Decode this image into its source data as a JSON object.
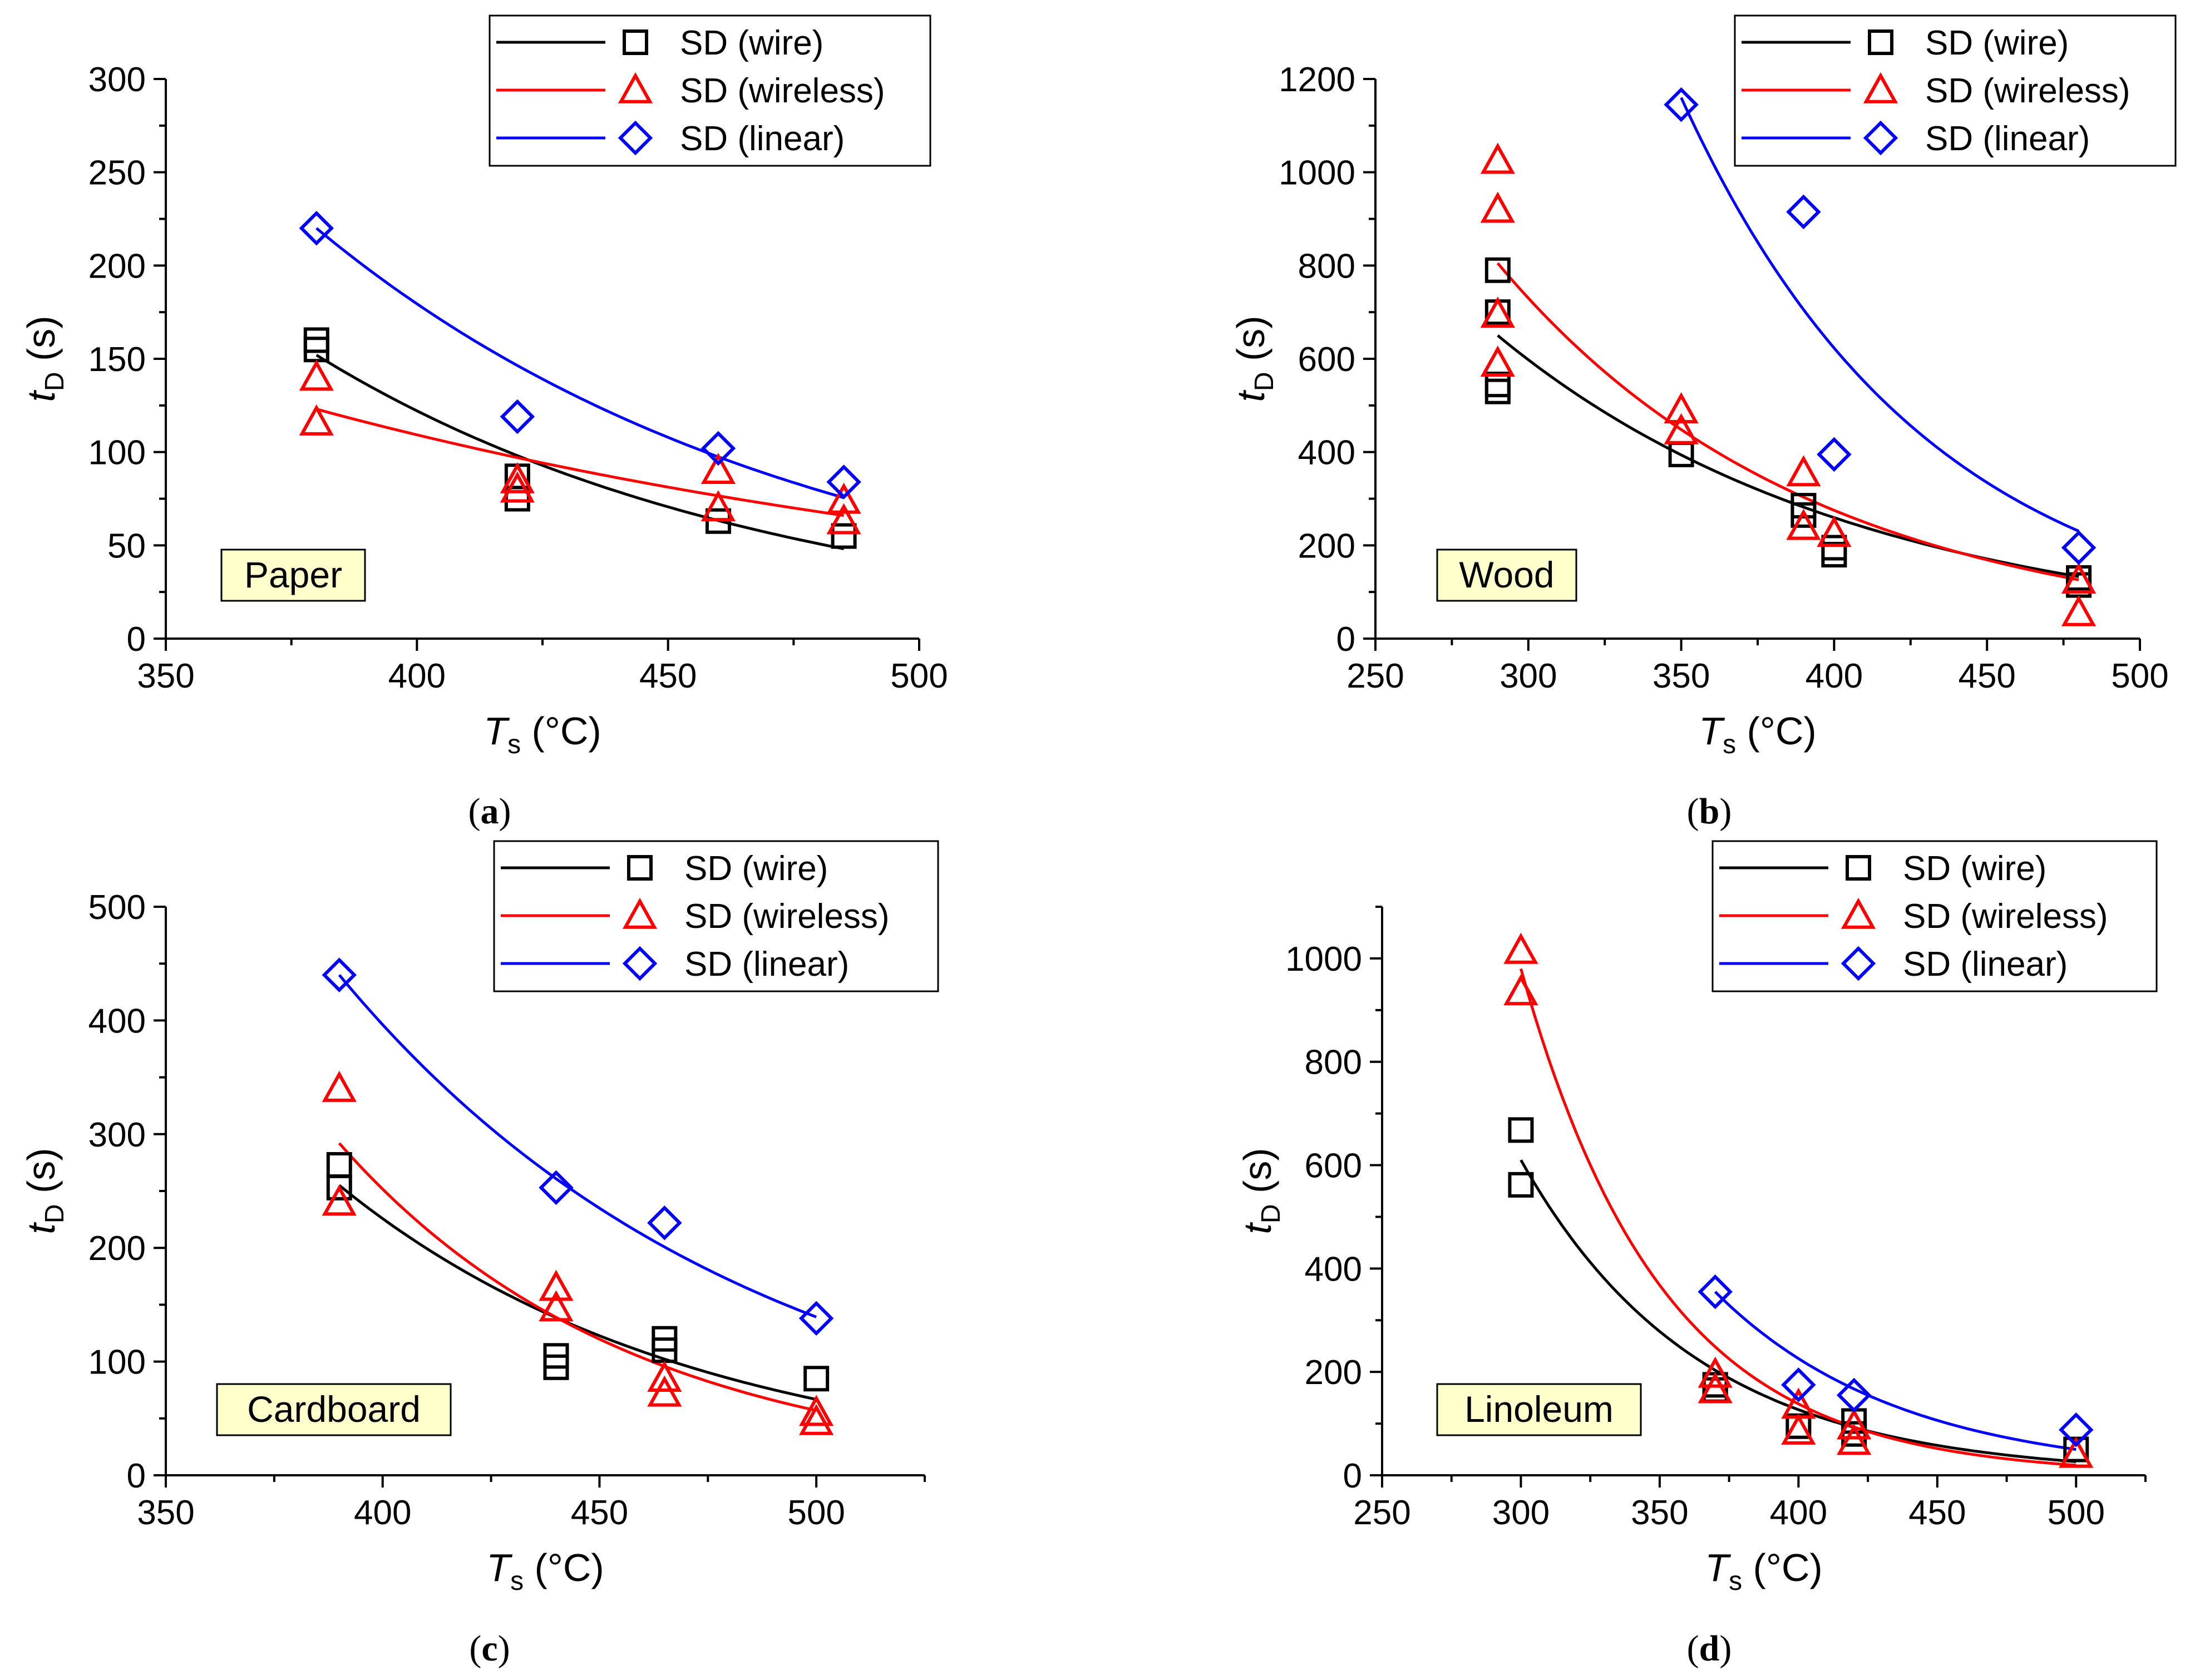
{
  "figure": {
    "colors": {
      "wire": "#000000",
      "wireless": "#ff0000",
      "linear": "#0000ff",
      "badge_fill": "#ffffcc"
    },
    "legend_labels": [
      "SD (wire)",
      "SD (wireless)",
      "SD (linear)"
    ],
    "xlabel_main": "T",
    "xlabel_sub": "s",
    "xlabel_unit": " (°C)",
    "ylabel_main": "t",
    "ylabel_sub": "D",
    "ylabel_unit": " (s)"
  },
  "chart_data": [
    {
      "type": "scatter",
      "panel": "a",
      "caption_letter": "a",
      "material": "Paper",
      "xlim": [
        350,
        500
      ],
      "ylim": [
        0,
        300
      ],
      "xticks": [
        350,
        400,
        450,
        500
      ],
      "yticks": [
        0,
        50,
        100,
        150,
        200,
        250,
        300
      ],
      "xlabel": "Ts (°C)",
      "ylabel": "tD (s)",
      "series": [
        {
          "name": "SD (wire)",
          "marker": "square",
          "color": "#000000",
          "points": [
            [
              380,
              160
            ],
            [
              380,
              155
            ],
            [
              420,
              87
            ],
            [
              420,
              75
            ],
            [
              460,
              63
            ],
            [
              485,
              55
            ]
          ],
          "fit": {
            "x": [
              380,
              485
            ],
            "a": 152.0,
            "b": -0.01095
          }
        },
        {
          "name": "SD (wireless)",
          "marker": "triangle",
          "color": "#ff0000",
          "points": [
            [
              380,
              140
            ],
            [
              380,
              116
            ],
            [
              420,
              85
            ],
            [
              420,
              80
            ],
            [
              460,
              90
            ],
            [
              460,
              70
            ],
            [
              485,
              74
            ],
            [
              485,
              63
            ]
          ],
          "fit": {
            "x": [
              380,
              485
            ],
            "a": 123.0,
            "b": -0.00593
          }
        },
        {
          "name": "SD (linear)",
          "marker": "diamond",
          "color": "#0000ff",
          "points": [
            [
              380,
              220
            ],
            [
              420,
              119
            ],
            [
              460,
              102
            ],
            [
              485,
              84
            ]
          ],
          "fit": {
            "x": [
              380,
              485
            ],
            "a": 220.0,
            "b": -0.01018
          }
        }
      ]
    },
    {
      "type": "scatter",
      "panel": "b",
      "caption_letter": "b",
      "material": "Wood",
      "xlim": [
        250,
        500
      ],
      "ylim": [
        0,
        1200
      ],
      "xticks": [
        250,
        300,
        350,
        400,
        450,
        500
      ],
      "yticks": [
        0,
        200,
        400,
        600,
        800,
        1000,
        1200
      ],
      "xlabel": "Ts (°C)",
      "ylabel": "tD (s)",
      "series": [
        {
          "name": "SD (wire)",
          "marker": "square",
          "color": "#000000",
          "points": [
            [
              290,
              790
            ],
            [
              290,
              700
            ],
            [
              290,
              545
            ],
            [
              290,
              530
            ],
            [
              350,
              395
            ],
            [
              390,
              285
            ],
            [
              390,
              265
            ],
            [
              400,
              195
            ],
            [
              400,
              180
            ],
            [
              480,
              130
            ],
            [
              480,
              115
            ]
          ],
          "fit": {
            "x": [
              290,
              480
            ],
            "a": 650.0,
            "b": -0.00835
          }
        },
        {
          "name": "SD (wireless)",
          "marker": "triangle",
          "color": "#ff0000",
          "points": [
            [
              290,
              1025
            ],
            [
              290,
              920
            ],
            [
              290,
              695
            ],
            [
              290,
              590
            ],
            [
              350,
              490
            ],
            [
              350,
              445
            ],
            [
              390,
              355
            ],
            [
              390,
              240
            ],
            [
              400,
              225
            ],
            [
              480,
              125
            ],
            [
              480,
              55
            ]
          ],
          "fit": {
            "x": [
              290,
              480
            ],
            "a": 805.0,
            "b": -0.00976
          }
        },
        {
          "name": "SD (linear)",
          "marker": "diamond",
          "color": "#0000ff",
          "points": [
            [
              350,
              1145
            ],
            [
              390,
              915
            ],
            [
              400,
              395
            ],
            [
              480,
              195
            ]
          ],
          "fit": {
            "x": [
              350,
              480
            ],
            "a": 1160.0,
            "b": -0.01243
          }
        }
      ]
    },
    {
      "type": "scatter",
      "panel": "c",
      "caption_letter": "c",
      "material": "Cardboard",
      "xlim": [
        350,
        525
      ],
      "ylim": [
        0,
        500
      ],
      "xticks": [
        350,
        400,
        450,
        500
      ],
      "yticks": [
        0,
        100,
        200,
        300,
        400,
        500
      ],
      "xlabel": "Ts (°C)",
      "ylabel": "tD (s)",
      "series": [
        {
          "name": "SD (wire)",
          "marker": "square",
          "color": "#000000",
          "points": [
            [
              390,
              273
            ],
            [
              390,
              253
            ],
            [
              440,
              105
            ],
            [
              440,
              95
            ],
            [
              465,
              120
            ],
            [
              465,
              110
            ],
            [
              500,
              85
            ]
          ],
          "fit": {
            "x": [
              390,
              500
            ],
            "a": 255.0,
            "b": -0.01219
          }
        },
        {
          "name": "SD (wireless)",
          "marker": "triangle",
          "color": "#ff0000",
          "points": [
            [
              390,
              340
            ],
            [
              390,
              240
            ],
            [
              440,
              165
            ],
            [
              440,
              147
            ],
            [
              465,
              85
            ],
            [
              465,
              72
            ],
            [
              500,
              55
            ],
            [
              500,
              47
            ]
          ],
          "fit": {
            "x": [
              390,
              500
            ],
            "a": 292.0,
            "b": -0.01486
          }
        },
        {
          "name": "SD (linear)",
          "marker": "diamond",
          "color": "#0000ff",
          "points": [
            [
              390,
              440
            ],
            [
              440,
              253
            ],
            [
              465,
              222
            ],
            [
              500,
              138
            ]
          ],
          "fit": {
            "x": [
              390,
              500
            ],
            "a": 440.0,
            "b": -0.01046
          }
        }
      ]
    },
    {
      "type": "scatter",
      "panel": "d",
      "caption_letter": "d",
      "material": "Linoleum",
      "xlim": [
        250,
        525
      ],
      "ylim": [
        0,
        1100
      ],
      "xticks": [
        250,
        300,
        350,
        400,
        450,
        500
      ],
      "yticks": [
        0,
        200,
        400,
        600,
        800,
        1000
      ],
      "xlabel": "Ts (°C)",
      "ylabel": "tD (s)",
      "series": [
        {
          "name": "SD (wire)",
          "marker": "square",
          "color": "#000000",
          "points": [
            [
              300,
              668
            ],
            [
              300,
              562
            ],
            [
              370,
              175
            ],
            [
              370,
              165
            ],
            [
              400,
              95
            ],
            [
              420,
              105
            ],
            [
              420,
              80
            ],
            [
              500,
              50
            ]
          ],
          "fit": {
            "x": [
              300,
              500
            ],
            "a": 610.0,
            "b": -0.0157
          }
        },
        {
          "name": "SD (wireless)",
          "marker": "triangle",
          "color": "#ff0000",
          "points": [
            [
              300,
              1015
            ],
            [
              300,
              935
            ],
            [
              370,
              195
            ],
            [
              370,
              165
            ],
            [
              400,
              135
            ],
            [
              400,
              85
            ],
            [
              420,
              95
            ],
            [
              420,
              65
            ],
            [
              500,
              40
            ]
          ],
          "fit": {
            "x": [
              300,
              500
            ],
            "a": 980.0,
            "b": -0.0196
          }
        },
        {
          "name": "SD (linear)",
          "marker": "diamond",
          "color": "#0000ff",
          "points": [
            [
              370,
              355
            ],
            [
              400,
              175
            ],
            [
              420,
              155
            ],
            [
              500,
              88
            ]
          ],
          "fit": {
            "x": [
              370,
              500
            ],
            "a": 355.0,
            "b": -0.01508
          }
        }
      ]
    }
  ]
}
